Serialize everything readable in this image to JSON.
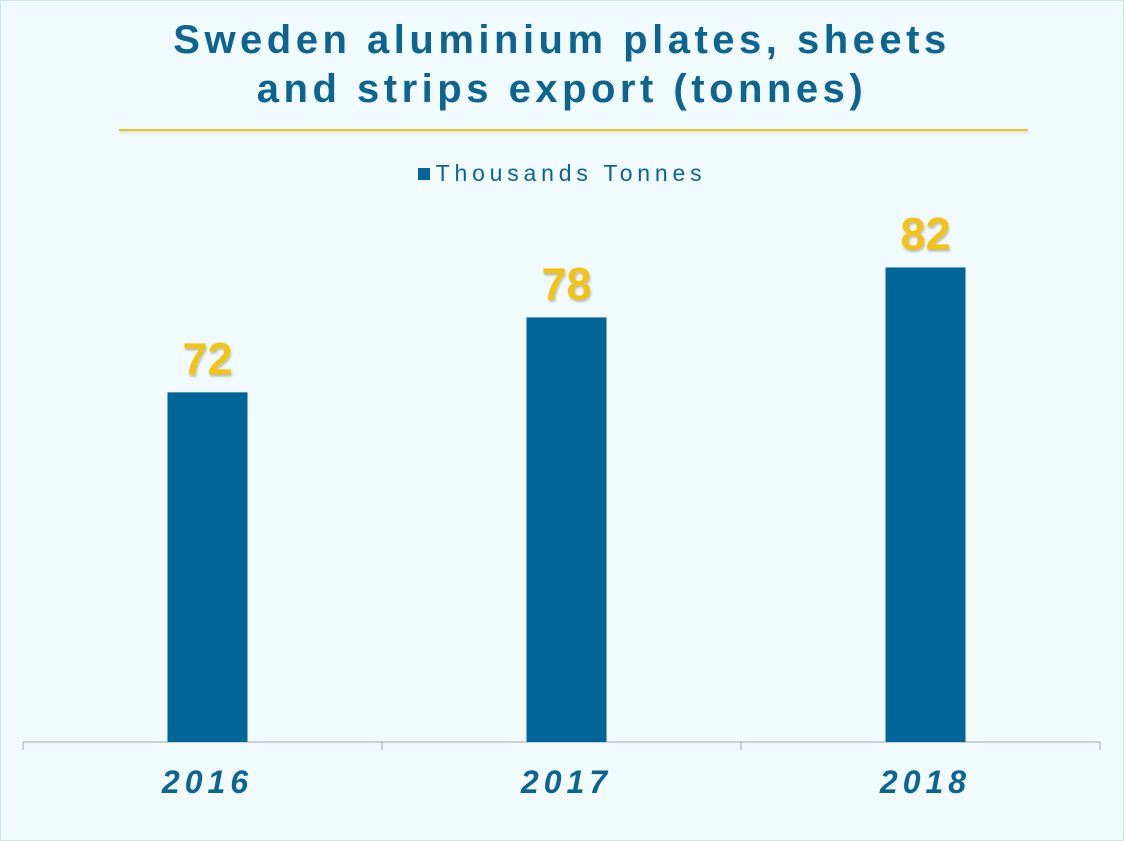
{
  "chart_data": {
    "type": "bar",
    "title_lines": [
      "Sweden aluminium plates, sheets",
      "and strips export (tonnes)"
    ],
    "categories": [
      "2016",
      "2017",
      "2018"
    ],
    "series": [
      {
        "name": "Thousands Tonnes",
        "values": [
          72,
          78,
          82
        ]
      }
    ],
    "data_labels": [
      "72",
      "78",
      "82"
    ],
    "xlabel": "",
    "ylabel": "",
    "ylim": [
      44,
      85
    ],
    "legend_position": "top",
    "grid": false
  },
  "colors": {
    "bar": "#006699",
    "data_label": "#f2c319",
    "text": "#0c6491",
    "axis": "#a6a6a6",
    "background": "#f1fbfd"
  }
}
